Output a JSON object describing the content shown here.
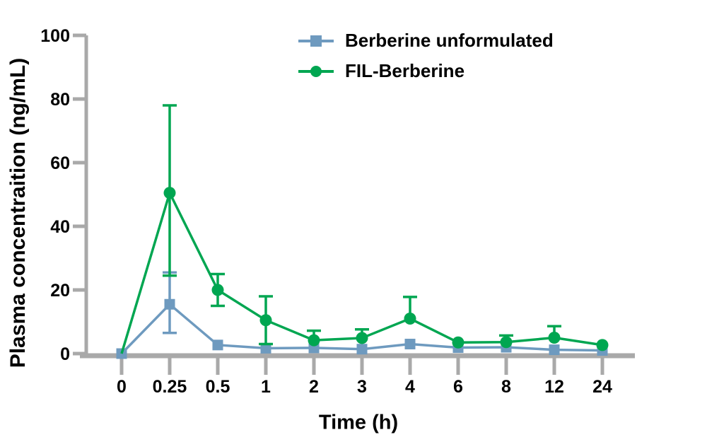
{
  "colors": {
    "axis": "#a9a9a9",
    "series_blue": "#6e9abf",
    "series_green": "#00a651",
    "text": "#000000",
    "background": "#ffffff"
  },
  "chart_data": {
    "type": "line",
    "title": "",
    "xlabel": "Time (h)",
    "ylabel": "Plasma concentraition (ng/mL)",
    "x_categories": [
      "0",
      "0.25",
      "0.5",
      "1",
      "2",
      "3",
      "4",
      "6",
      "8",
      "12",
      "24"
    ],
    "ylim": [
      0,
      100
    ],
    "y_ticks": [
      0,
      20,
      40,
      60,
      80,
      100
    ],
    "grid": false,
    "legend_position": "top-right",
    "error_bars": true,
    "series": [
      {
        "name": "Berberine unformulated",
        "marker": "square",
        "color": "#6e9abf",
        "values": [
          0,
          15.5,
          2.7,
          1.7,
          1.8,
          1.4,
          3.0,
          1.9,
          2.0,
          1.2,
          1.0
        ],
        "err_plus": [
          0,
          10.0,
          0,
          0,
          0,
          0,
          0,
          0,
          0,
          0,
          0
        ],
        "err_minus": [
          0,
          9.0,
          0,
          0,
          0,
          0,
          0,
          0,
          0,
          0,
          0
        ],
        "skip_marker_indices": []
      },
      {
        "name": "FIL-Berberine",
        "marker": "circle",
        "color": "#00a651",
        "values": [
          0,
          50.5,
          20.0,
          10.5,
          4.2,
          4.9,
          11.0,
          3.5,
          3.6,
          5.0,
          2.7
        ],
        "err_plus": [
          0,
          27.5,
          5.0,
          7.5,
          3.0,
          2.7,
          6.8,
          0,
          2.1,
          3.6,
          0
        ],
        "err_minus": [
          0,
          26.0,
          5.0,
          7.5,
          0,
          0,
          0,
          0,
          0,
          0,
          0
        ],
        "skip_marker_indices": [
          0
        ]
      }
    ]
  }
}
